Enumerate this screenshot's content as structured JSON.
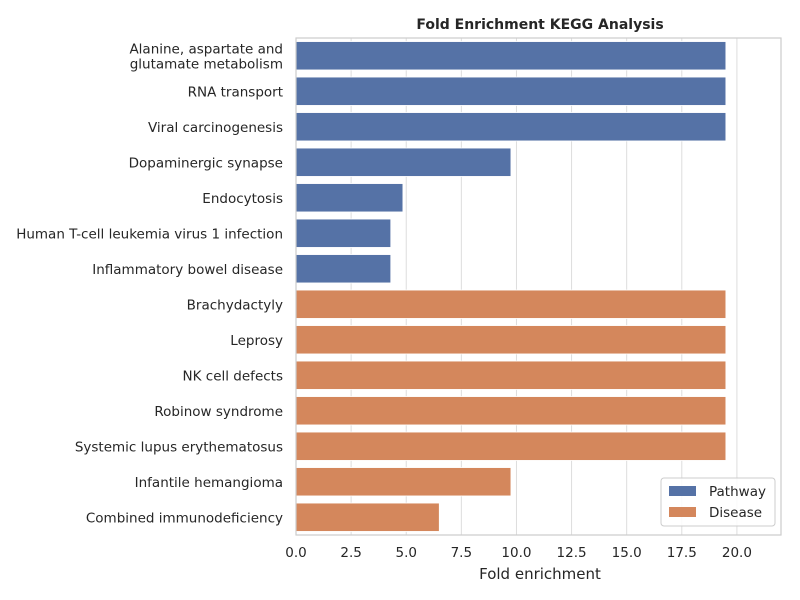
{
  "chart_data": {
    "type": "bar",
    "orientation": "horizontal",
    "title": "Fold Enrichment KEGG Analysis",
    "xlabel": "Fold enrichment",
    "ylabel": "",
    "xlim": [
      0,
      22
    ],
    "xticks": [
      "0.0",
      "2.5",
      "5.0",
      "7.5",
      "10.0",
      "12.5",
      "15.0",
      "17.5",
      "20.0"
    ],
    "grid": true,
    "legend_position": "bottom-right",
    "colors": {
      "Pathway": "#5572a6",
      "Disease": "#d4875c"
    },
    "series": [
      {
        "name": "Pathway",
        "categories": [
          [
            "Alanine, aspartate and",
            "glutamate metabolism"
          ],
          [
            "RNA transport"
          ],
          [
            "Viral carcinogenesis"
          ],
          [
            "Dopaminergic synapse"
          ],
          [
            "Endocytosis"
          ],
          [
            "Human T-cell leukemia virus 1 infection"
          ],
          [
            "Inflammatory bowel disease"
          ]
        ],
        "values": [
          19.5,
          19.5,
          19.5,
          9.75,
          4.85,
          4.3,
          4.3
        ]
      },
      {
        "name": "Disease",
        "categories": [
          [
            "Brachydactyly"
          ],
          [
            "Leprosy"
          ],
          [
            "NK cell defects"
          ],
          [
            "Robinow syndrome"
          ],
          [
            "Systemic lupus erythematosus"
          ],
          [
            "Infantile hemangioma"
          ],
          [
            "Combined immunodeficiency"
          ]
        ],
        "values": [
          19.5,
          19.5,
          19.5,
          19.5,
          19.5,
          9.75,
          6.5
        ]
      }
    ]
  }
}
